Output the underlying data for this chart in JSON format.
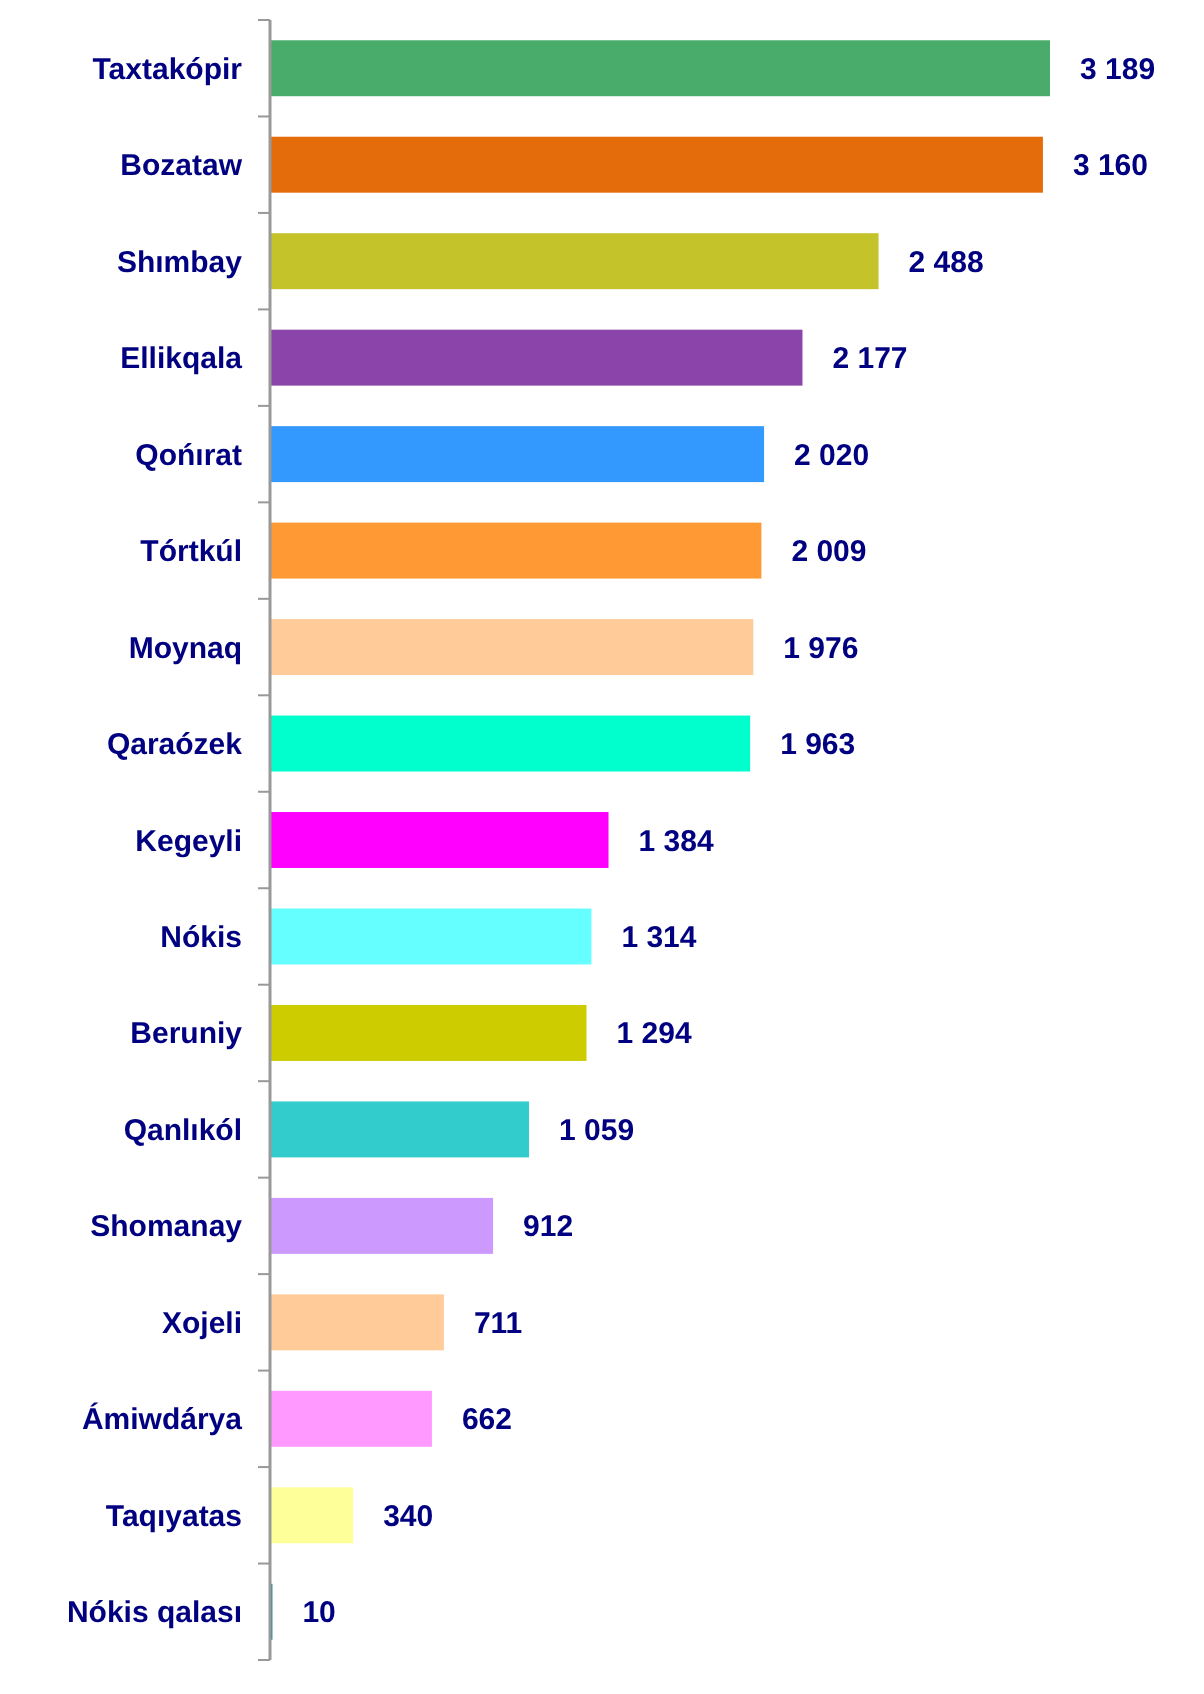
{
  "chart_data": {
    "type": "bar",
    "orientation": "horizontal",
    "categories": [
      "Taxtakópir",
      "Bozataw",
      "Shımbay",
      "Ellikqala",
      "Qońırat",
      "Tórtkúl",
      "Moynaq",
      "Qaraózek",
      "Kegeyli",
      "Nókis",
      "Beruniy",
      "Qanlıkól",
      "Shomanay",
      "Xojeli",
      "Ámiwdárya",
      "Taqıyatas",
      "Nókis qalası"
    ],
    "values": [
      3189,
      3160,
      2488,
      2177,
      2020,
      2009,
      1976,
      1963,
      1384,
      1314,
      1294,
      1059,
      912,
      711,
      662,
      340,
      10
    ],
    "value_labels": [
      "3 189",
      "3 160",
      "2 488",
      "2 177",
      "2 020",
      "2 009",
      "1 976",
      "1 963",
      "1 384",
      "1 314",
      "1 294",
      "1 059",
      "912",
      "711",
      "662",
      "340",
      "10"
    ],
    "colors": [
      "#4aac6a",
      "#e46c0a",
      "#c4c42a",
      "#8b44aa",
      "#3399ff",
      "#ff9933",
      "#ffcc99",
      "#00ffcc",
      "#ff00ff",
      "#66ffff",
      "#cccc00",
      "#33cccc",
      "#cc99ff",
      "#ffcc99",
      "#ff99ff",
      "#ffff99",
      "#1a8aa6"
    ],
    "grid": false
  }
}
